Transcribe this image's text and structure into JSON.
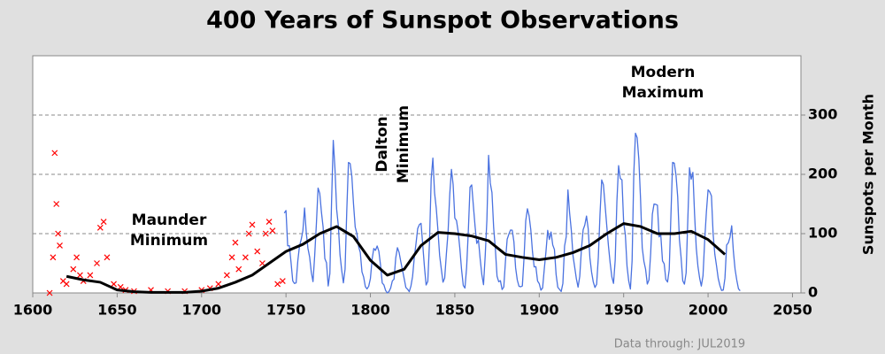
{
  "chart_data": {
    "type": "line",
    "title": "400 Years of Sunspot Observations",
    "y_label": "Sunspots per Month",
    "note": "Data through: JUL2019",
    "xlim": [
      1600,
      2055
    ],
    "xticks": [
      1600,
      1650,
      1700,
      1750,
      1800,
      1850,
      1900,
      1950,
      2000,
      2050
    ],
    "ylim": [
      0,
      400
    ],
    "yticks": [
      0,
      100,
      200,
      300
    ],
    "yaxis_side": "right",
    "grid": true,
    "annotations": [
      {
        "text": [
          "Maunder",
          "Minimum"
        ]
      },
      {
        "text": [
          "Dalton",
          "Minimum"
        ]
      },
      {
        "text": [
          "Modern",
          "Maximum"
        ]
      }
    ],
    "series": [
      {
        "type": "scatter",
        "color": "#ff0000",
        "x": [
          1610,
          1612,
          1613,
          1614,
          1615,
          1616,
          1618,
          1620,
          1624,
          1626,
          1628,
          1630,
          1634,
          1638,
          1640,
          1642,
          1644,
          1648,
          1652,
          1655,
          1660,
          1670,
          1680,
          1690,
          1700,
          1705,
          1710,
          1715,
          1718,
          1720,
          1722,
          1726,
          1728,
          1730,
          1733,
          1736,
          1738,
          1740,
          1742,
          1745,
          1748
        ],
        "values": [
          0,
          60,
          236,
          150,
          100,
          80,
          20,
          15,
          40,
          60,
          30,
          20,
          30,
          50,
          110,
          120,
          60,
          15,
          10,
          5,
          3,
          5,
          3,
          3,
          5,
          8,
          15,
          30,
          60,
          85,
          40,
          60,
          100,
          115,
          70,
          50,
          100,
          120,
          105,
          15,
          20
        ]
      },
      {
        "type": "line",
        "color": "#4a72e0",
        "x": [
          1749,
          1750,
          1751,
          1752,
          1753,
          1754,
          1755,
          1756,
          1757,
          1758,
          1759,
          1760,
          1761,
          1762,
          1763,
          1764,
          1765,
          1766,
          1767,
          1768,
          1769,
          1770,
          1771,
          1772,
          1773,
          1774,
          1775,
          1776,
          1777,
          1778,
          1779,
          1780,
          1781,
          1782,
          1783,
          1784,
          1785,
          1786,
          1787,
          1788,
          1789,
          1790,
          1791,
          1792,
          1793,
          1794,
          1795,
          1796,
          1797,
          1798,
          1799,
          1800,
          1801,
          1802,
          1803,
          1804,
          1805,
          1806,
          1807,
          1808,
          1809,
          1810,
          1811,
          1812,
          1813,
          1814,
          1815,
          1816,
          1817,
          1818,
          1819,
          1820,
          1821,
          1822,
          1823,
          1824,
          1825,
          1826,
          1827,
          1828,
          1829,
          1830,
          1831,
          1832,
          1833,
          1834,
          1835,
          1836,
          1837,
          1838,
          1839,
          1840,
          1841,
          1842,
          1843,
          1844,
          1845,
          1846,
          1847,
          1848,
          1849,
          1850,
          1851,
          1852,
          1853,
          1854,
          1855,
          1856,
          1857,
          1858,
          1859,
          1860,
          1861,
          1862,
          1863,
          1864,
          1865,
          1866,
          1867,
          1868,
          1869,
          1870,
          1871,
          1872,
          1873,
          1874,
          1875,
          1876,
          1877,
          1878,
          1879,
          1880,
          1881,
          1882,
          1883,
          1884,
          1885,
          1886,
          1887,
          1888,
          1889,
          1890,
          1891,
          1892,
          1893,
          1894,
          1895,
          1896,
          1897,
          1898,
          1899,
          1900,
          1901,
          1902,
          1903,
          1904,
          1905,
          1906,
          1907,
          1908,
          1909,
          1910,
          1911,
          1912,
          1913,
          1914,
          1915,
          1916,
          1917,
          1918,
          1919,
          1920,
          1921,
          1922,
          1923,
          1924,
          1925,
          1926,
          1927,
          1928,
          1929,
          1930,
          1931,
          1932,
          1933,
          1934,
          1935,
          1936,
          1937,
          1938,
          1939,
          1940,
          1941,
          1942,
          1943,
          1944,
          1945,
          1946,
          1947,
          1948,
          1949,
          1950,
          1951,
          1952,
          1953,
          1954,
          1955,
          1956,
          1957,
          1958,
          1959,
          1960,
          1961,
          1962,
          1963,
          1964,
          1965,
          1966,
          1967,
          1968,
          1969,
          1970,
          1971,
          1972,
          1973,
          1974,
          1975,
          1976,
          1977,
          1978,
          1979,
          1980,
          1981,
          1982,
          1983,
          1984,
          1985,
          1986,
          1987,
          1988,
          1989,
          1990,
          1991,
          1992,
          1993,
          1994,
          1995,
          1996,
          1997,
          1998,
          1999,
          2000,
          2001,
          2002,
          2003,
          2004,
          2005,
          2006,
          2007,
          2008,
          2009,
          2010,
          2011,
          2012,
          2013,
          2014,
          2015,
          2016,
          2017,
          2018,
          2019
        ],
        "values": [
          134.7,
          139,
          79.5,
          79.7,
          51.2,
          20.3,
          16,
          17,
          54,
          79.3,
          90,
          104.8,
          143.2,
          102,
          75.2,
          60.7,
          34.8,
          19,
          63,
          116.3,
          176.8,
          168,
          136,
          110.8,
          58,
          51,
          11.7,
          33,
          154.2,
          257.3,
          209.8,
          141.3,
          113.5,
          64.2,
          38,
          17,
          40.2,
          138.2,
          220,
          218.2,
          196.8,
          149.8,
          111,
          100,
          78.2,
          68.3,
          35.5,
          26.7,
          10.7,
          6.8,
          11.3,
          24.2,
          56.7,
          75,
          71.8,
          79.2,
          70.3,
          46.8,
          16.8,
          13.5,
          4.2,
          0,
          2.3,
          8.3,
          20.3,
          23.2,
          59,
          76.3,
          68.3,
          52.9,
          38.5,
          24.2,
          9.2,
          6.3,
          2.2,
          11.4,
          28.2,
          59.9,
          83,
          108.5,
          115.2,
          117.4,
          80.8,
          44.3,
          13.4,
          19.5,
          85.8,
          192.7,
          227.3,
          168.7,
          143,
          105.5,
          63.3,
          40.3,
          18.1,
          25.1,
          65.8,
          102.7,
          166.3,
          208.3,
          182.5,
          126.3,
          122,
          102.7,
          74.1,
          39,
          12.7,
          8.2,
          43.4,
          104.4,
          178.3,
          182.2,
          146.6,
          112.1,
          83.5,
          89.2,
          57.8,
          30.7,
          13.9,
          62.8,
          123.6,
          232,
          185.3,
          169.2,
          110.1,
          74.5,
          28.3,
          18.9,
          20.7,
          5.7,
          10,
          53.7,
          90.5,
          99,
          106.1,
          105.8,
          86.3,
          42.4,
          21.8,
          11.2,
          10.4,
          11.8,
          59.5,
          121.7,
          142,
          130,
          106.6,
          69.4,
          43.8,
          44.4,
          20.2,
          15.7,
          4.6,
          8.5,
          40.8,
          70.1,
          105.5,
          90.1,
          102.8,
          80.9,
          73.2,
          30.9,
          9.5,
          6,
          2.4,
          16.1,
          79,
          95,
          173.6,
          134.6,
          105.7,
          62.7,
          43.5,
          23.7,
          9.7,
          27.9,
          74,
          106.5,
          114.7,
          129.7,
          108.2,
          59.4,
          35.1,
          18.6,
          9.2,
          14.6,
          60.2,
          132.8,
          190.6,
          182.6,
          148,
          113,
          79.2,
          50.8,
          27.1,
          16.1,
          55.3,
          154.3,
          214.7,
          193,
          190.7,
          118.9,
          98.3,
          45,
          20.1,
          6.6,
          54.2,
          200.7,
          269.3,
          261.7,
          225.1,
          159,
          76.4,
          53.4,
          39.9,
          15,
          22,
          66.8,
          132.9,
          150,
          149.4,
          148,
          94.4,
          97.6,
          54.1,
          49.2,
          22.5,
          18.4,
          39.3,
          131,
          220.1,
          218.9,
          198.9,
          162.4,
          91,
          60.5,
          20.6,
          14.8,
          33.9,
          123,
          211.1,
          191.8,
          203.3,
          133,
          76.1,
          44.9,
          25.1,
          11.6,
          28.9,
          88.3,
          136.3,
          173.9,
          170.4,
          163.6,
          99.3,
          65.3,
          45.8,
          24.7,
          12.6,
          4.2,
          4.8,
          24.9,
          80.8,
          84.5,
          94,
          113.3,
          69.8,
          39.8,
          21.7,
          7,
          3.6
        ]
      },
      {
        "type": "line",
        "color": "#000000",
        "width": 3,
        "x": [
          1620,
          1630,
          1640,
          1650,
          1660,
          1670,
          1680,
          1690,
          1700,
          1710,
          1720,
          1730,
          1740,
          1750,
          1760,
          1770,
          1780,
          1790,
          1800,
          1810,
          1820,
          1830,
          1840,
          1850,
          1860,
          1870,
          1880,
          1890,
          1900,
          1910,
          1920,
          1930,
          1940,
          1950,
          1960,
          1970,
          1980,
          1990,
          2000,
          2010
        ],
        "values": [
          28,
          22,
          18,
          5,
          2,
          1,
          1,
          1,
          3,
          8,
          18,
          30,
          50,
          70,
          82,
          100,
          112,
          95,
          55,
          30,
          40,
          80,
          102,
          100,
          96,
          88,
          65,
          60,
          56,
          60,
          68,
          80,
          100,
          117,
          112,
          100,
          100,
          104,
          90,
          65
        ]
      }
    ]
  }
}
